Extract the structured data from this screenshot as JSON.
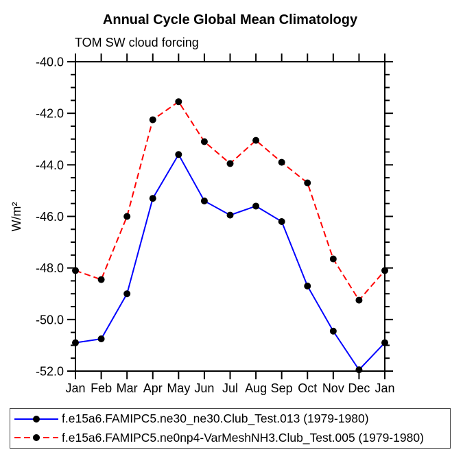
{
  "chart_data": {
    "type": "line",
    "title": "Annual Cycle Global Mean Climatology",
    "subtitle": "TOM SW cloud forcing",
    "ylabel": "W/m²",
    "xlabel": "",
    "categories": [
      "Jan",
      "Feb",
      "Mar",
      "Apr",
      "May",
      "Jun",
      "Jul",
      "Aug",
      "Sep",
      "Oct",
      "Nov",
      "Dec",
      "Jan"
    ],
    "ylim": [
      -52.0,
      -40.0
    ],
    "ytick_major_interval": 2.0,
    "ytick_minor_interval": 0.5,
    "y_tick_labels": [
      "-40.0",
      "-42.0",
      "-44.0",
      "-46.0",
      "-48.0",
      "-50.0",
      "-52.0"
    ],
    "y_tick_values": [
      -40.0,
      -42.0,
      -44.0,
      -46.0,
      -48.0,
      -50.0,
      -52.0
    ],
    "grid": false,
    "legend_position": "bottom",
    "frame_color": "#000000",
    "marker_color": "#000000",
    "series": [
      {
        "name": "f.e15a6.FAMIPC5.ne30_ne30.Club_Test.013 (1979-1980)",
        "color": "#0000ff",
        "style": "solid",
        "marker": "dot",
        "values": [
          -50.9,
          -50.75,
          -49.0,
          -45.3,
          -43.6,
          -45.4,
          -45.95,
          -45.6,
          -46.2,
          -48.7,
          -50.45,
          -51.95,
          -50.9
        ]
      },
      {
        "name": "f.e15a6.FAMIPC5.ne0np4-VarMeshNH3.Club_Test.005 (1979-1980)",
        "color": "#ff0000",
        "style": "dashed",
        "marker": "dot",
        "values": [
          -48.1,
          -48.45,
          -46.0,
          -42.25,
          -41.55,
          -43.1,
          -43.95,
          -43.05,
          -43.9,
          -44.7,
          -47.65,
          -49.25,
          -48.1
        ]
      }
    ]
  }
}
